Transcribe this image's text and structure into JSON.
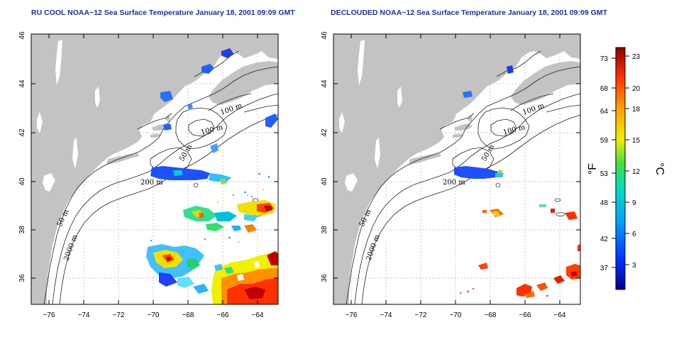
{
  "panels": [
    {
      "title": "RU COOL NOAA−12 Sea Surface Temperature January 18, 2001 09:09 GMT"
    },
    {
      "title": "DECLOUDED NOAA−12 Sea Surface Temperature January 18, 2001 09:09 GMT"
    }
  ],
  "axes": {
    "x_ticks": [
      "−76",
      "−74",
      "−72",
      "−70",
      "−68",
      "−66",
      "−64"
    ],
    "y_ticks": [
      "36",
      "38",
      "40",
      "42",
      "44",
      "46"
    ]
  },
  "contour_labels": [
    "100 m",
    "100 m",
    "50 m",
    "200 m",
    "50 m",
    "2000 m"
  ],
  "colorbar": {
    "fahrenheit_ticks": [
      "73",
      "68",
      "64",
      "59",
      "53",
      "48",
      "42",
      "37"
    ],
    "celsius_ticks": [
      "23",
      "20",
      "18",
      "15",
      "12",
      "9",
      "6",
      "3"
    ],
    "fahrenheit_unit": "°F",
    "celsius_unit": "°C"
  },
  "colors": {
    "land": "#c3c3c3",
    "title": "#1f2f9f",
    "grid": "#9a9a9a"
  }
}
